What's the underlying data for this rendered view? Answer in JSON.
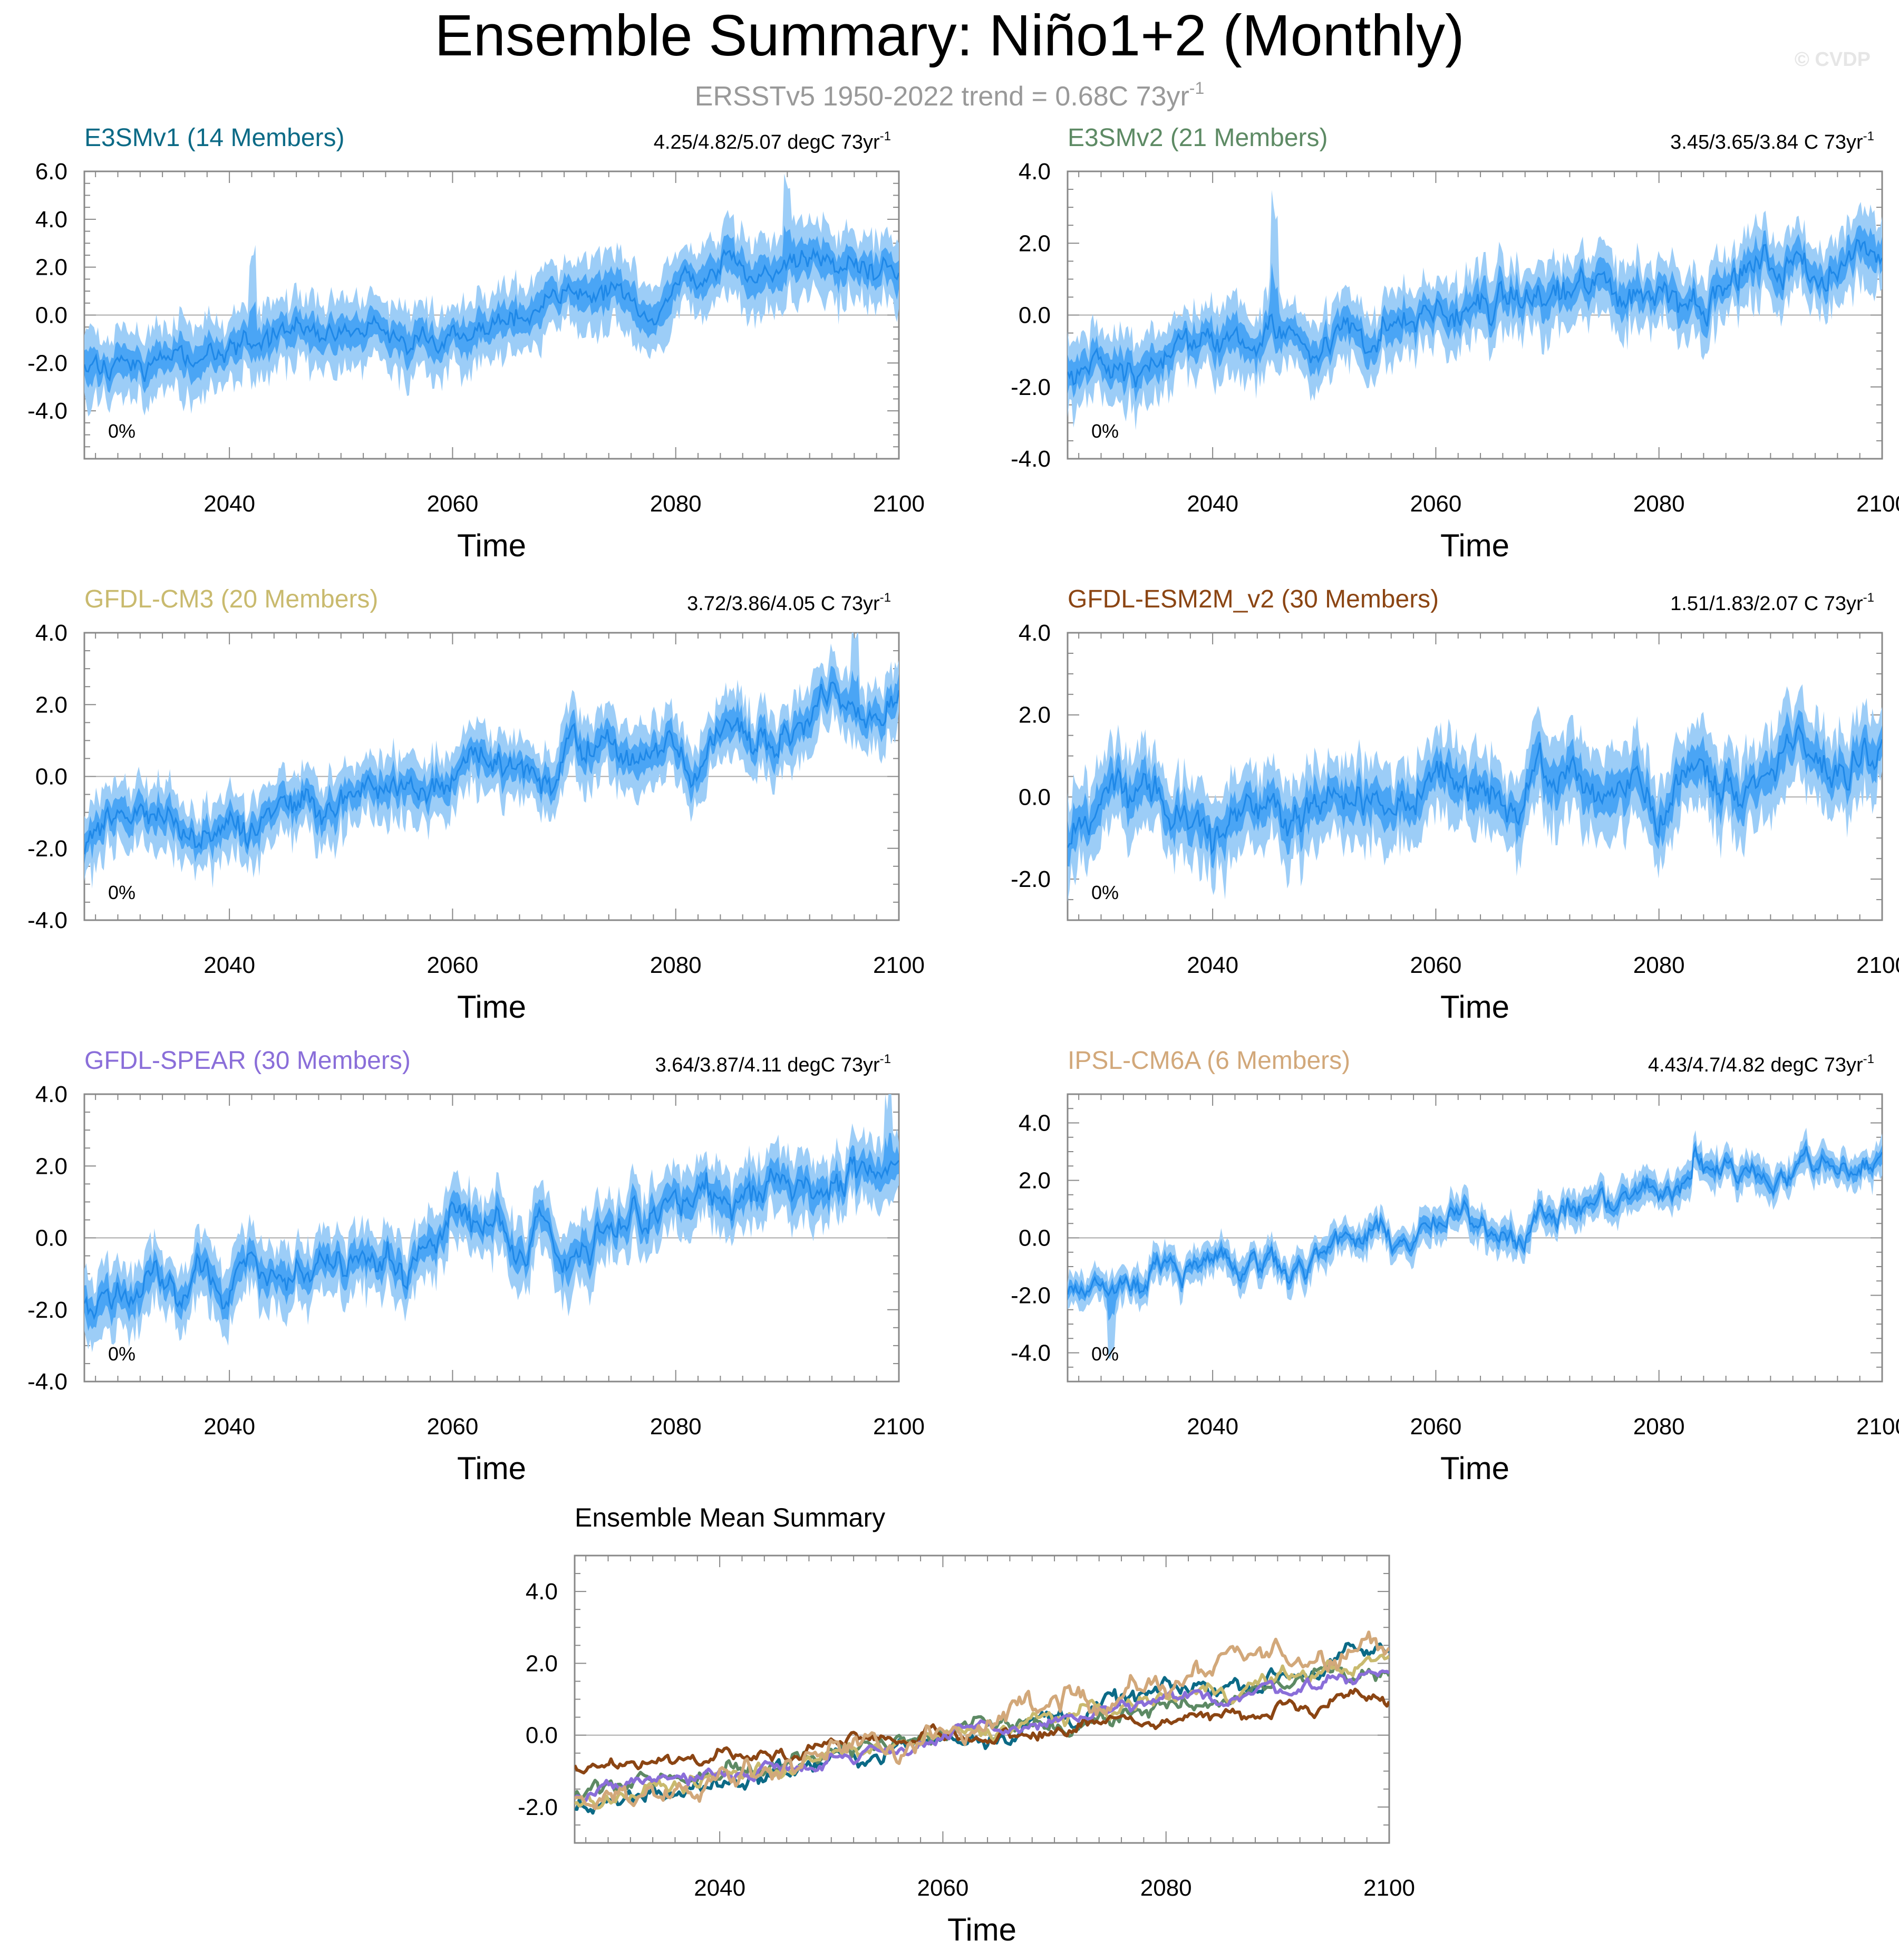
{
  "figure": {
    "title": "Ensemble Summary: Niño1+2 (Monthly)",
    "subtitle_prefix": "ERSSTv5 1950-2022 trend = 0.68C 73yr",
    "subtitle_sup": "-1",
    "watermark": "© CVDP",
    "colors": {
      "band_outer": "#9ccdf7",
      "band_inner": "#4aa5f5",
      "mean_line": "#1e88e8",
      "zero_line": "#aaaaaa"
    }
  },
  "chart_data": [
    {
      "id": "e3smv1",
      "type": "area",
      "title": "E3SMv1 (14 Members)",
      "title_color": "#0b6a86",
      "trend_text": "4.25/4.82/5.07 degC 73yr",
      "trend_sup": "-1",
      "pct_label": "0%",
      "xlabel": "Time",
      "ylabel": "",
      "x_range": [
        2027,
        2100
      ],
      "xticks": [
        2040,
        2060,
        2080,
        2100
      ],
      "ylim": [
        -6.0,
        6.0
      ],
      "yticks": [
        -4.0,
        -2.0,
        0.0,
        2.0,
        4.0,
        6.0
      ],
      "ytick_labels": [
        "-4.0",
        "-2.0",
        "0.0",
        "2.0",
        "4.0",
        "6.0"
      ],
      "mean_trend": [
        -2.1,
        2.3
      ],
      "spread": 1.4,
      "seed": 11,
      "jumps": [
        {
          "x": 2084,
          "dy": 0.8
        }
      ],
      "spikes": [
        {
          "x": 2090,
          "dy": 2.0
        },
        {
          "x": 2042,
          "dy": 2.2
        }
      ]
    },
    {
      "id": "e3smv2",
      "type": "area",
      "title": "E3SMv2 (21 Members)",
      "title_color": "#5d8a64",
      "trend_text": "3.45/3.65/3.84 C 73yr",
      "trend_sup": "-1",
      "pct_label": "0%",
      "xlabel": "Time",
      "ylabel": "",
      "x_range": [
        2027,
        2100
      ],
      "xticks": [
        2040,
        2060,
        2080,
        2100
      ],
      "ylim": [
        -4.0,
        4.0
      ],
      "yticks": [
        -4.0,
        -2.0,
        0.0,
        2.0,
        4.0
      ],
      "ytick_labels": [
        "-4.0",
        "-2.0",
        "0.0",
        "2.0",
        "4.0"
      ],
      "mean_trend": [
        -1.5,
        1.7
      ],
      "spread": 0.9,
      "seed": 23,
      "jumps": [],
      "spikes": [
        {
          "x": 2045.5,
          "dy": 2.4
        }
      ]
    },
    {
      "id": "gfdl-cm3",
      "type": "area",
      "title": "GFDL-CM3 (20 Members)",
      "title_color": "#c9ba6e",
      "trend_text": "3.72/3.86/4.05 C 73yr",
      "trend_sup": "-1",
      "pct_label": "0%",
      "xlabel": "Time",
      "ylabel": "",
      "x_range": [
        2027,
        2100
      ],
      "xticks": [
        2040,
        2060,
        2080,
        2100
      ],
      "ylim": [
        -4.0,
        4.0
      ],
      "yticks": [
        -4.0,
        -2.0,
        0.0,
        2.0,
        4.0
      ],
      "ytick_labels": [
        "-4.0",
        "-2.0",
        "0.0",
        "2.0",
        "4.0"
      ],
      "mean_trend": [
        -1.9,
        2.0
      ],
      "spread": 0.85,
      "seed": 37,
      "jumps": [],
      "spikes": [
        {
          "x": 2096,
          "dy": 1.3
        }
      ]
    },
    {
      "id": "gfdl-esm2m",
      "type": "area",
      "title": "GFDL-ESM2M_v2 (30 Members)",
      "title_color": "#8b4513",
      "trend_text": "1.51/1.83/2.07 C 73yr",
      "trend_sup": "-1",
      "pct_label": "0%",
      "xlabel": "Time",
      "ylabel": "",
      "x_range": [
        2027,
        2100
      ],
      "xticks": [
        2040,
        2060,
        2080,
        2100
      ],
      "ylim": [
        -3.0,
        4.0
      ],
      "yticks": [
        -2.0,
        0.0,
        2.0,
        4.0
      ],
      "ytick_labels": [
        "-2.0",
        "0.0",
        "2.0",
        "4.0"
      ],
      "mean_trend": [
        -0.8,
        0.9
      ],
      "spread": 0.95,
      "seed": 51,
      "jumps": [],
      "spikes": []
    },
    {
      "id": "gfdl-spear",
      "type": "area",
      "title": "GFDL-SPEAR (30 Members)",
      "title_color": "#8a6ed9",
      "trend_text": "3.64/3.87/4.11 degC 73yr",
      "trend_sup": "-1",
      "pct_label": "0%",
      "xlabel": "Time",
      "ylabel": "",
      "x_range": [
        2027,
        2100
      ],
      "xticks": [
        2040,
        2060,
        2080,
        2100
      ],
      "ylim": [
        -4.0,
        4.0
      ],
      "yticks": [
        -4.0,
        -2.0,
        0.0,
        2.0,
        4.0
      ],
      "ytick_labels": [
        "-4.0",
        "-2.0",
        "0.0",
        "2.0",
        "4.0"
      ],
      "mean_trend": [
        -1.8,
        1.9
      ],
      "spread": 0.85,
      "seed": 67,
      "jumps": [],
      "spikes": [
        {
          "x": 2099,
          "dy": 1.2
        }
      ]
    },
    {
      "id": "ipsl-cm6a",
      "type": "area",
      "title": "IPSL-CM6A (6 Members)",
      "title_color": "#d2a87a",
      "trend_text": "4.43/4.7/4.82 degC 73yr",
      "trend_sup": "-1",
      "pct_label": "0%",
      "xlabel": "Time",
      "ylabel": "",
      "x_range": [
        2027,
        2100
      ],
      "xticks": [
        2040,
        2060,
        2080,
        2100
      ],
      "ylim": [
        -5.0,
        5.0
      ],
      "yticks": [
        -4.0,
        -2.0,
        0.0,
        2.0,
        4.0
      ],
      "ytick_labels": [
        "-4.0",
        "-2.0",
        "0.0",
        "2.0",
        "4.0"
      ],
      "mean_trend": [
        -2.0,
        2.9
      ],
      "spread": 0.55,
      "seed": 83,
      "jumps": [
        {
          "x": 2083,
          "dy": 0.9
        }
      ],
      "spikes": [
        {
          "x": 2031,
          "dy": -1.6
        }
      ]
    },
    {
      "id": "ens-mean",
      "type": "line",
      "title": "Ensemble Mean Summary",
      "title_color": "#000000",
      "xlabel": "Time",
      "ylabel": "",
      "x_range": [
        2027,
        2100
      ],
      "xticks": [
        2040,
        2060,
        2080,
        2100
      ],
      "ylim": [
        -3.0,
        5.0
      ],
      "yticks": [
        -2.0,
        0.0,
        2.0,
        4.0
      ],
      "ytick_labels": [
        "-2.0",
        "0.0",
        "2.0",
        "4.0"
      ],
      "series": [
        {
          "name": "E3SMv1",
          "color": "#0b6a86",
          "trend": [
            -2.1,
            2.3
          ],
          "noise": 0.45,
          "seed": 101
        },
        {
          "name": "E3SMv2",
          "color": "#5d8a64",
          "trend": [
            -1.6,
            1.8
          ],
          "noise": 0.4,
          "seed": 113
        },
        {
          "name": "GFDL-CM3",
          "color": "#c9ba6e",
          "trend": [
            -1.9,
            2.1
          ],
          "noise": 0.35,
          "seed": 127
        },
        {
          "name": "GFDL-ESM2M_v2",
          "color": "#8b4513",
          "trend": [
            -0.8,
            0.9
          ],
          "noise": 0.3,
          "seed": 131
        },
        {
          "name": "GFDL-SPEAR",
          "color": "#8a6ed9",
          "trend": [
            -1.7,
            1.8
          ],
          "noise": 0.3,
          "seed": 149
        },
        {
          "name": "IPSL-CM6A",
          "color": "#d2a87a",
          "trend": [
            -2.0,
            2.8
          ],
          "noise": 0.55,
          "seed": 157
        }
      ]
    }
  ]
}
